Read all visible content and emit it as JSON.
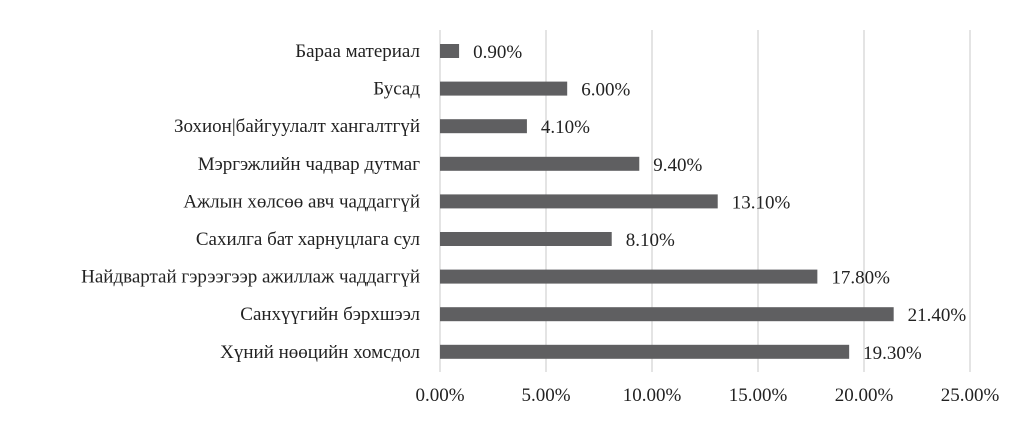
{
  "chart_data": {
    "type": "bar",
    "orientation": "horizontal",
    "categories": [
      "Бараа материал",
      "Бусад",
      "Зохион|байгуулалт хангалтгүй",
      "Мэргэжлийн чадвар дутмаг",
      "Ажлын хөлсөө авч чаддаггүй",
      "Сахилга бат харнуцлага сул",
      "Найдвартай гэрээгээр ажиллаж чаддаггүй",
      "Санхүүгийн бэрхшээл",
      "Хүний нөөцийн хомсдол"
    ],
    "values": [
      0.9,
      6.0,
      4.1,
      9.4,
      13.1,
      8.1,
      17.8,
      21.4,
      19.3
    ],
    "data_labels": [
      "0.90%",
      "6.00%",
      "4.10%",
      "9.40%",
      "13.10%",
      "8.10%",
      "17.80%",
      "21.40%",
      "19.30%"
    ],
    "xlim": [
      0,
      25
    ],
    "x_ticks": [
      0,
      5,
      10,
      15,
      20,
      25
    ],
    "x_tick_labels": [
      "0.00%",
      "5.00%",
      "10.00%",
      "15.00%",
      "20.00%",
      "25.00%"
    ],
    "grid": true,
    "legend": "none",
    "bar_color": "#5f5f61",
    "grid_color": "#c8c8c8"
  }
}
